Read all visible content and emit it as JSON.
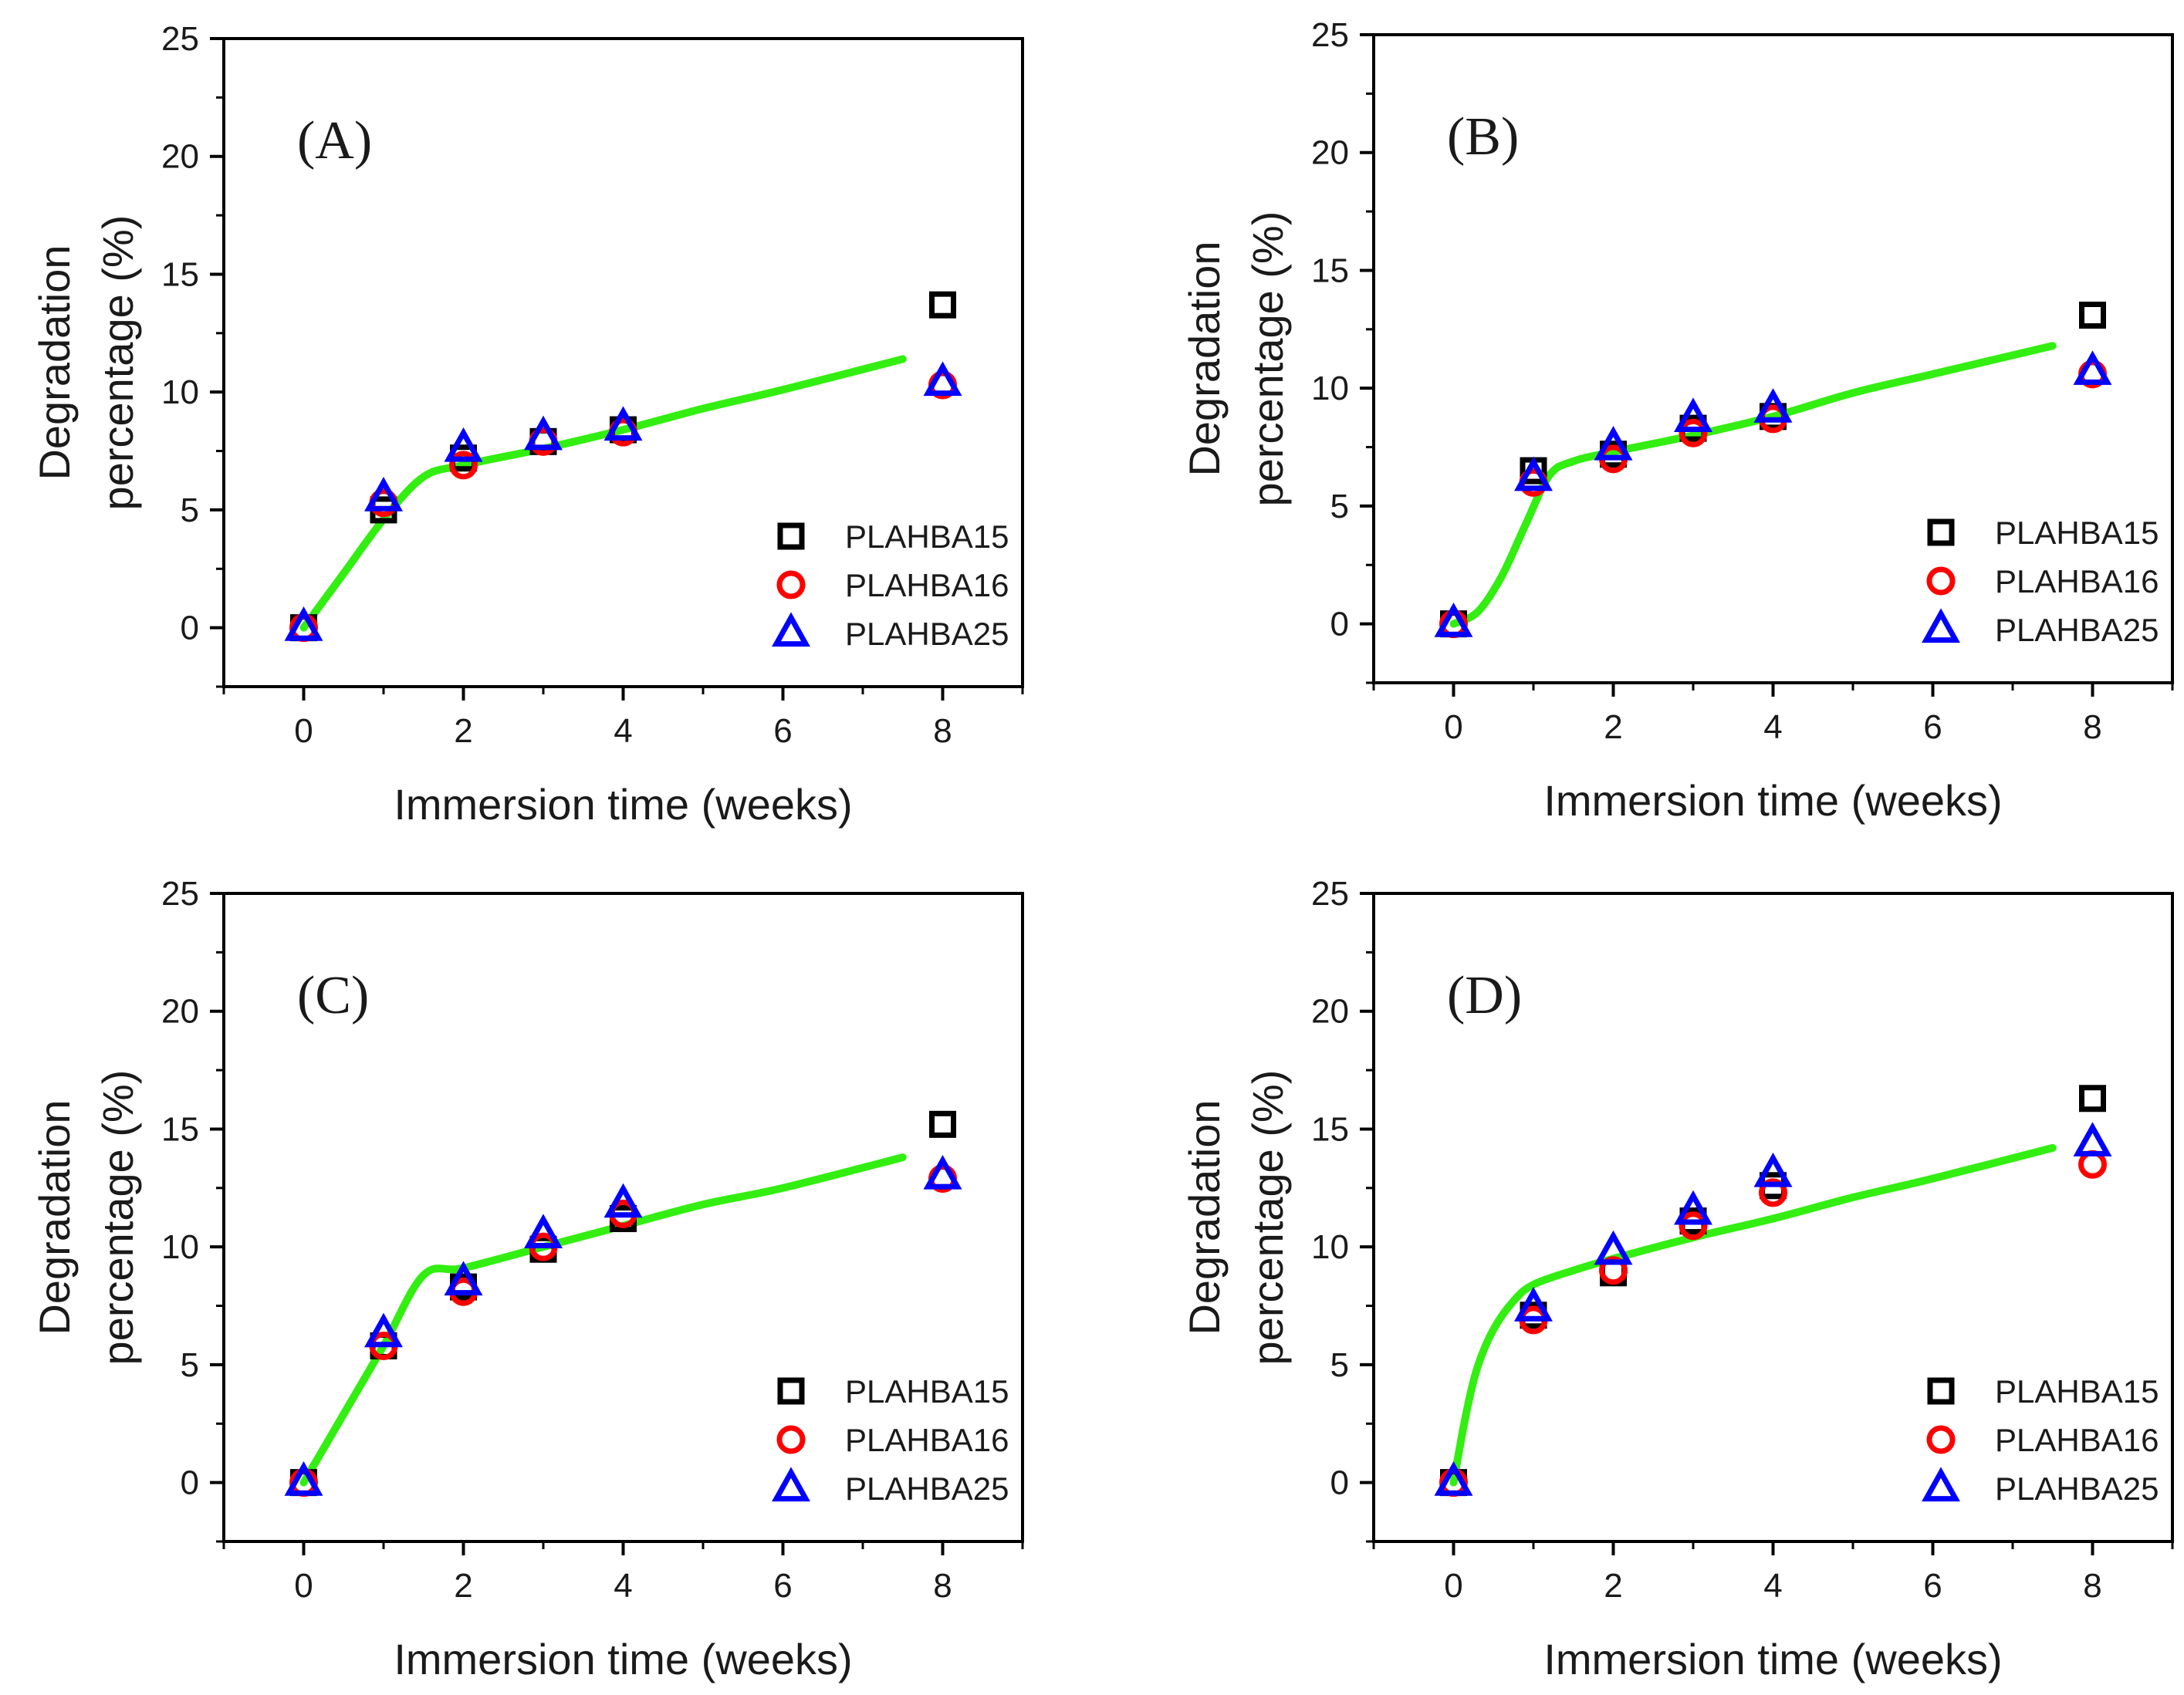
{
  "figure": {
    "series_styles": [
      {
        "name": "PLAHBA15",
        "marker": "square",
        "color": "#000000"
      },
      {
        "name": "PLAHBA16",
        "marker": "circle",
        "color": "#ff0000"
      },
      {
        "name": "PLAHBA25",
        "marker": "triangle",
        "color": "#0000ff"
      }
    ],
    "fit_color": "#33ee11"
  },
  "chart_data": [
    {
      "type": "scatter",
      "panel_label": "(A)",
      "xlabel": "Immersion time (weeks)",
      "ylabel": [
        "Degradation",
        "percentage (%)"
      ],
      "xlim": [
        -1,
        9
      ],
      "ylim": [
        -2.5,
        25
      ],
      "xticks": [
        0,
        2,
        4,
        6,
        8
      ],
      "yticks": [
        0,
        5,
        10,
        15,
        20,
        25
      ],
      "legend_position": "bottom-right",
      "x": [
        0,
        1,
        2,
        3,
        4,
        8
      ],
      "series": [
        {
          "name": "PLAHBA15",
          "values": [
            0,
            5.0,
            7.2,
            7.9,
            8.4,
            13.7
          ]
        },
        {
          "name": "PLAHBA16",
          "values": [
            0,
            5.3,
            6.9,
            7.9,
            8.3,
            10.3
          ]
        },
        {
          "name": "PLAHBA25",
          "values": [
            0,
            5.5,
            7.6,
            8.1,
            8.5,
            10.4
          ]
        }
      ],
      "fit": {
        "x": [
          0,
          0.5,
          1.0,
          1.5,
          2.0,
          3.0,
          4.0,
          5.0,
          6.0,
          7.5
        ],
        "y": [
          0,
          2.3,
          4.6,
          6.4,
          6.9,
          7.6,
          8.4,
          9.3,
          10.1,
          11.4
        ]
      }
    },
    {
      "type": "scatter",
      "panel_label": "(B)",
      "xlabel": "Immersion time (weeks)",
      "ylabel": [
        "Degradation",
        "percentage (%)"
      ],
      "xlim": [
        -1,
        9
      ],
      "ylim": [
        -2.5,
        25
      ],
      "xticks": [
        0,
        2,
        4,
        6,
        8
      ],
      "yticks": [
        0,
        5,
        10,
        15,
        20,
        25
      ],
      "legend_position": "bottom-right",
      "x": [
        0,
        1,
        2,
        3,
        4,
        8
      ],
      "series": [
        {
          "name": "PLAHBA15",
          "values": [
            0,
            6.5,
            7.2,
            8.3,
            8.8,
            13.1
          ]
        },
        {
          "name": "PLAHBA16",
          "values": [
            0,
            6.0,
            7.0,
            8.1,
            8.7,
            10.6
          ]
        },
        {
          "name": "PLAHBA25",
          "values": [
            0,
            6.2,
            7.5,
            8.7,
            9.1,
            10.7
          ]
        }
      ],
      "fit": {
        "x": [
          0,
          0.3,
          0.6,
          0.9,
          1.2,
          1.5,
          2.0,
          3.0,
          4.0,
          5.0,
          6.0,
          7.5
        ],
        "y": [
          0,
          0.5,
          2.0,
          4.2,
          6.3,
          6.9,
          7.3,
          8.0,
          8.8,
          9.8,
          10.6,
          11.8
        ]
      }
    },
    {
      "type": "scatter",
      "panel_label": "(C)",
      "xlabel": "Immersion time (weeks)",
      "ylabel": [
        "Degradation",
        "percentage (%)"
      ],
      "xlim": [
        -1,
        9
      ],
      "ylim": [
        -2.5,
        25
      ],
      "xticks": [
        0,
        2,
        4,
        6,
        8
      ],
      "yticks": [
        0,
        5,
        10,
        15,
        20,
        25
      ],
      "legend_position": "bottom-right",
      "x": [
        0,
        1,
        2,
        3,
        4,
        8
      ],
      "series": [
        {
          "name": "PLAHBA15",
          "values": [
            0,
            5.8,
            8.3,
            9.9,
            11.2,
            15.2
          ]
        },
        {
          "name": "PLAHBA16",
          "values": [
            0,
            5.8,
            8.1,
            10.0,
            11.4,
            12.9
          ]
        },
        {
          "name": "PLAHBA25",
          "values": [
            0,
            6.3,
            8.5,
            10.5,
            11.8,
            13.0
          ]
        }
      ],
      "fit": {
        "x": [
          0,
          0.5,
          1.0,
          1.5,
          2.0,
          3.0,
          4.0,
          5.0,
          6.0,
          7.5
        ],
        "y": [
          0,
          2.9,
          5.8,
          8.8,
          9.1,
          10.0,
          10.9,
          11.8,
          12.5,
          13.8
        ]
      }
    },
    {
      "type": "scatter",
      "panel_label": "(D)",
      "xlabel": "Immersion time (weeks)",
      "ylabel": [
        "Degradation",
        "percentage (%)"
      ],
      "xlim": [
        -1,
        9
      ],
      "ylim": [
        -2.5,
        25
      ],
      "xticks": [
        0,
        2,
        4,
        6,
        8
      ],
      "yticks": [
        0,
        5,
        10,
        15,
        20,
        25
      ],
      "legend_position": "bottom-right",
      "x": [
        0,
        1,
        2,
        3,
        4,
        8
      ],
      "series": [
        {
          "name": "PLAHBA15",
          "values": [
            0,
            7.1,
            8.9,
            11.1,
            12.6,
            16.3
          ]
        },
        {
          "name": "PLAHBA16",
          "values": [
            0,
            6.9,
            9.0,
            10.9,
            12.3,
            13.5
          ]
        },
        {
          "name": "PLAHBA25",
          "values": [
            0,
            7.4,
            9.8,
            11.5,
            13.1,
            14.4
          ]
        }
      ],
      "fit": {
        "x": [
          0,
          0.15,
          0.3,
          0.5,
          0.75,
          1.0,
          1.5,
          2.0,
          3.0,
          4.0,
          5.0,
          6.0,
          7.5
        ],
        "y": [
          0,
          2.8,
          4.9,
          6.5,
          7.7,
          8.4,
          9.0,
          9.5,
          10.4,
          11.2,
          12.1,
          12.9,
          14.2
        ]
      }
    }
  ]
}
